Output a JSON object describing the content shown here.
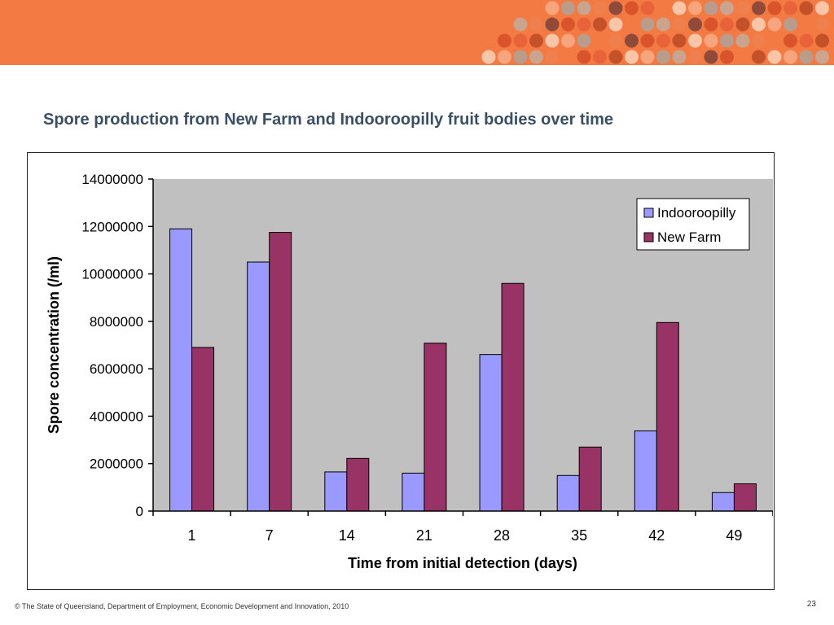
{
  "slide": {
    "title": "Spore production from New Farm and Indooroopilly fruit bodies over time",
    "footer": "© The State of Queensland, Department of Employment, Economic Development and Innovation, 2010",
    "page_number": "23"
  },
  "theme": {
    "banner_color": "#f37a43",
    "plot_background": "#c0c0c0"
  },
  "chart_data": {
    "type": "bar",
    "categories": [
      "1",
      "7",
      "14",
      "21",
      "28",
      "35",
      "42",
      "49"
    ],
    "series": [
      {
        "name": "Indooroopilly",
        "color": "#9999ff",
        "values": [
          11900000,
          10500000,
          1650000,
          1600000,
          6600000,
          1500000,
          3380000,
          780000
        ]
      },
      {
        "name": "New Farm",
        "color": "#993366",
        "values": [
          6900000,
          11750000,
          2220000,
          7080000,
          9600000,
          2700000,
          7950000,
          1150000
        ]
      }
    ],
    "title": "",
    "xlabel": "Time from initial detection (days)",
    "ylabel": "Spore concentration (/ml)",
    "ylim": [
      0,
      14000000
    ],
    "yticks": [
      "0",
      "2000000",
      "4000000",
      "6000000",
      "8000000",
      "10000000",
      "12000000",
      "14000000"
    ],
    "legend_position": "top-right",
    "grid": false
  }
}
